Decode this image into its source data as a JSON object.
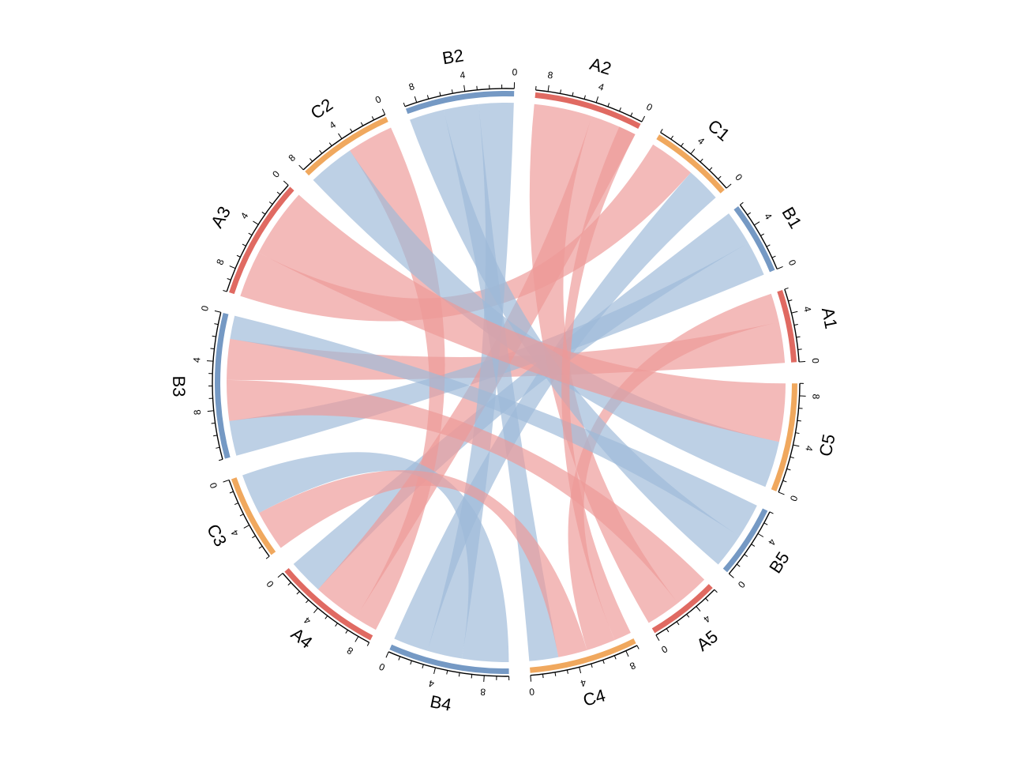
{
  "chart_data": {
    "type": "chord",
    "title": "",
    "colors": {
      "A": "#E06A62",
      "B": "#7599C4",
      "C": "#F0A85E",
      "link_A": "#EE9A98",
      "link_B": "#9DBAD8"
    },
    "tick_step": 1,
    "tick_label_values": [
      0,
      4,
      8
    ],
    "sectors": [
      {
        "name": "A1",
        "group": "A",
        "length": 6
      },
      {
        "name": "B1",
        "group": "B",
        "length": 6
      },
      {
        "name": "C1",
        "group": "C",
        "length": 7
      },
      {
        "name": "A2",
        "group": "A",
        "length": 9
      },
      {
        "name": "B2",
        "group": "B",
        "length": 9
      },
      {
        "name": "C2",
        "group": "C",
        "length": 8
      },
      {
        "name": "A3",
        "group": "A",
        "length": 10
      },
      {
        "name": "B3",
        "group": "B",
        "length": 12
      },
      {
        "name": "C3",
        "group": "C",
        "length": 7
      },
      {
        "name": "A4",
        "group": "A",
        "length": 9
      },
      {
        "name": "B4",
        "group": "B",
        "length": 10
      },
      {
        "name": "C4",
        "group": "C",
        "length": 9
      },
      {
        "name": "A5",
        "group": "A",
        "length": 6
      },
      {
        "name": "B5",
        "group": "B",
        "length": 6
      },
      {
        "name": "C5",
        "group": "C",
        "length": 9
      }
    ],
    "links": [
      {
        "from": "A1",
        "from_range": [
          0,
          3.5
        ],
        "to": "B3",
        "to_range": [
          2,
          5.5
        ],
        "color": "A"
      },
      {
        "from": "A1",
        "from_range": [
          3.5,
          6
        ],
        "to": "C4",
        "to_range": [
          5,
          7.5
        ],
        "color": "A"
      },
      {
        "from": "B1",
        "from_range": [
          0,
          3
        ],
        "to": "B3",
        "to_range": [
          9,
          12
        ],
        "color": "B"
      },
      {
        "from": "B1",
        "from_range": [
          3,
          6
        ],
        "to": "A4",
        "to_range": [
          0,
          3
        ],
        "color": "B"
      },
      {
        "from": "C1",
        "from_range": [
          0,
          3
        ],
        "to": "B4",
        "to_range": [
          0,
          3
        ],
        "color": "B"
      },
      {
        "from": "C1",
        "from_range": [
          3,
          7
        ],
        "to": "A3",
        "to_range": [
          6,
          10
        ],
        "color": "A"
      },
      {
        "from": "A2",
        "from_range": [
          0,
          4
        ],
        "to": "A4",
        "to_range": [
          3,
          7
        ],
        "color": "A"
      },
      {
        "from": "A2",
        "from_range": [
          4,
          9
        ],
        "to": "A5",
        "to_range": [
          0,
          3
        ],
        "color": "A"
      },
      {
        "from": "B2",
        "from_range": [
          0,
          3
        ],
        "to": "B4",
        "to_range": [
          3,
          6
        ],
        "color": "B"
      },
      {
        "from": "B2",
        "from_range": [
          3,
          6
        ],
        "to": "C4",
        "to_range": [
          0,
          2.5
        ],
        "color": "B"
      },
      {
        "from": "B2",
        "from_range": [
          6,
          9
        ],
        "to": "B5",
        "to_range": [
          0,
          3
        ],
        "color": "B"
      },
      {
        "from": "C2",
        "from_range": [
          0,
          4
        ],
        "to": "A4",
        "to_range": [
          7,
          9
        ],
        "color": "A"
      },
      {
        "from": "C2",
        "from_range": [
          4,
          8
        ],
        "to": "C5",
        "to_range": [
          0,
          4
        ],
        "color": "B"
      },
      {
        "from": "A3",
        "from_range": [
          0,
          6
        ],
        "to": "C5",
        "to_range": [
          4,
          9
        ],
        "color": "A"
      },
      {
        "from": "B3",
        "from_range": [
          0,
          2
        ],
        "to": "B5",
        "to_range": [
          3,
          6
        ],
        "color": "B"
      },
      {
        "from": "B3",
        "from_range": [
          5.5,
          9
        ],
        "to": "A5",
        "to_range": [
          3,
          6
        ],
        "color": "A"
      },
      {
        "from": "C3",
        "from_range": [
          0,
          3.5
        ],
        "to": "B4",
        "to_range": [
          6,
          10
        ],
        "color": "B"
      },
      {
        "from": "C3",
        "from_range": [
          3.5,
          7
        ],
        "to": "C4",
        "to_range": [
          2.5,
          5
        ],
        "color": "A"
      },
      {
        "from": "C4",
        "from_range": [
          7.5,
          9
        ],
        "to": "A2",
        "to_range": [
          0,
          1.5
        ],
        "color": "A"
      }
    ]
  }
}
